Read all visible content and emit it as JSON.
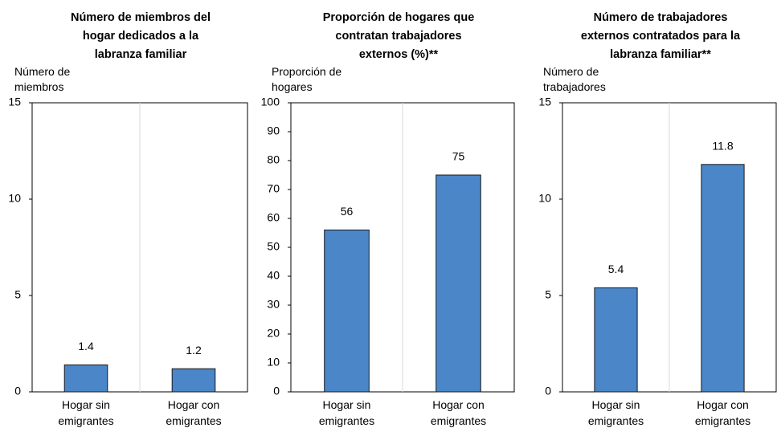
{
  "chart_data": [
    {
      "type": "bar",
      "title": "Número de miembros del\nhogar dedicados a la\nlabranza familiar",
      "y_label": "Número de\nmiembros",
      "categories": [
        "Hogar sin\nemigrantes",
        "Hogar con\nemigrantes"
      ],
      "values": [
        1.4,
        1.2
      ],
      "color": "#4a86c8",
      "ylim": [
        0,
        15
      ],
      "yticks": [
        0,
        5,
        10,
        15
      ]
    },
    {
      "type": "bar",
      "title": "Proporción de hogares que\ncontratan trabajadores\nexternos (%)**",
      "y_label": "Proporción de\nhogares",
      "categories": [
        "Hogar sin\nemigrantes",
        "Hogar con\nemigrantes"
      ],
      "values": [
        56,
        75
      ],
      "color": "#4a86c8",
      "ylim": [
        0,
        100
      ],
      "yticks": [
        0,
        10,
        20,
        30,
        40,
        50,
        60,
        70,
        80,
        90,
        100
      ]
    },
    {
      "type": "bar",
      "title": "Número de trabajadores\nexternos contratados para la\nlabranza familiar**",
      "y_label": "Número de\ntrabajadores",
      "categories": [
        "Hogar sin\nemigrantes",
        "Hogar con\nemigrantes"
      ],
      "values": [
        5.4,
        11.8
      ],
      "color": "#4a86c8",
      "ylim": [
        0,
        15
      ],
      "yticks": [
        0,
        5,
        10,
        15
      ]
    }
  ]
}
